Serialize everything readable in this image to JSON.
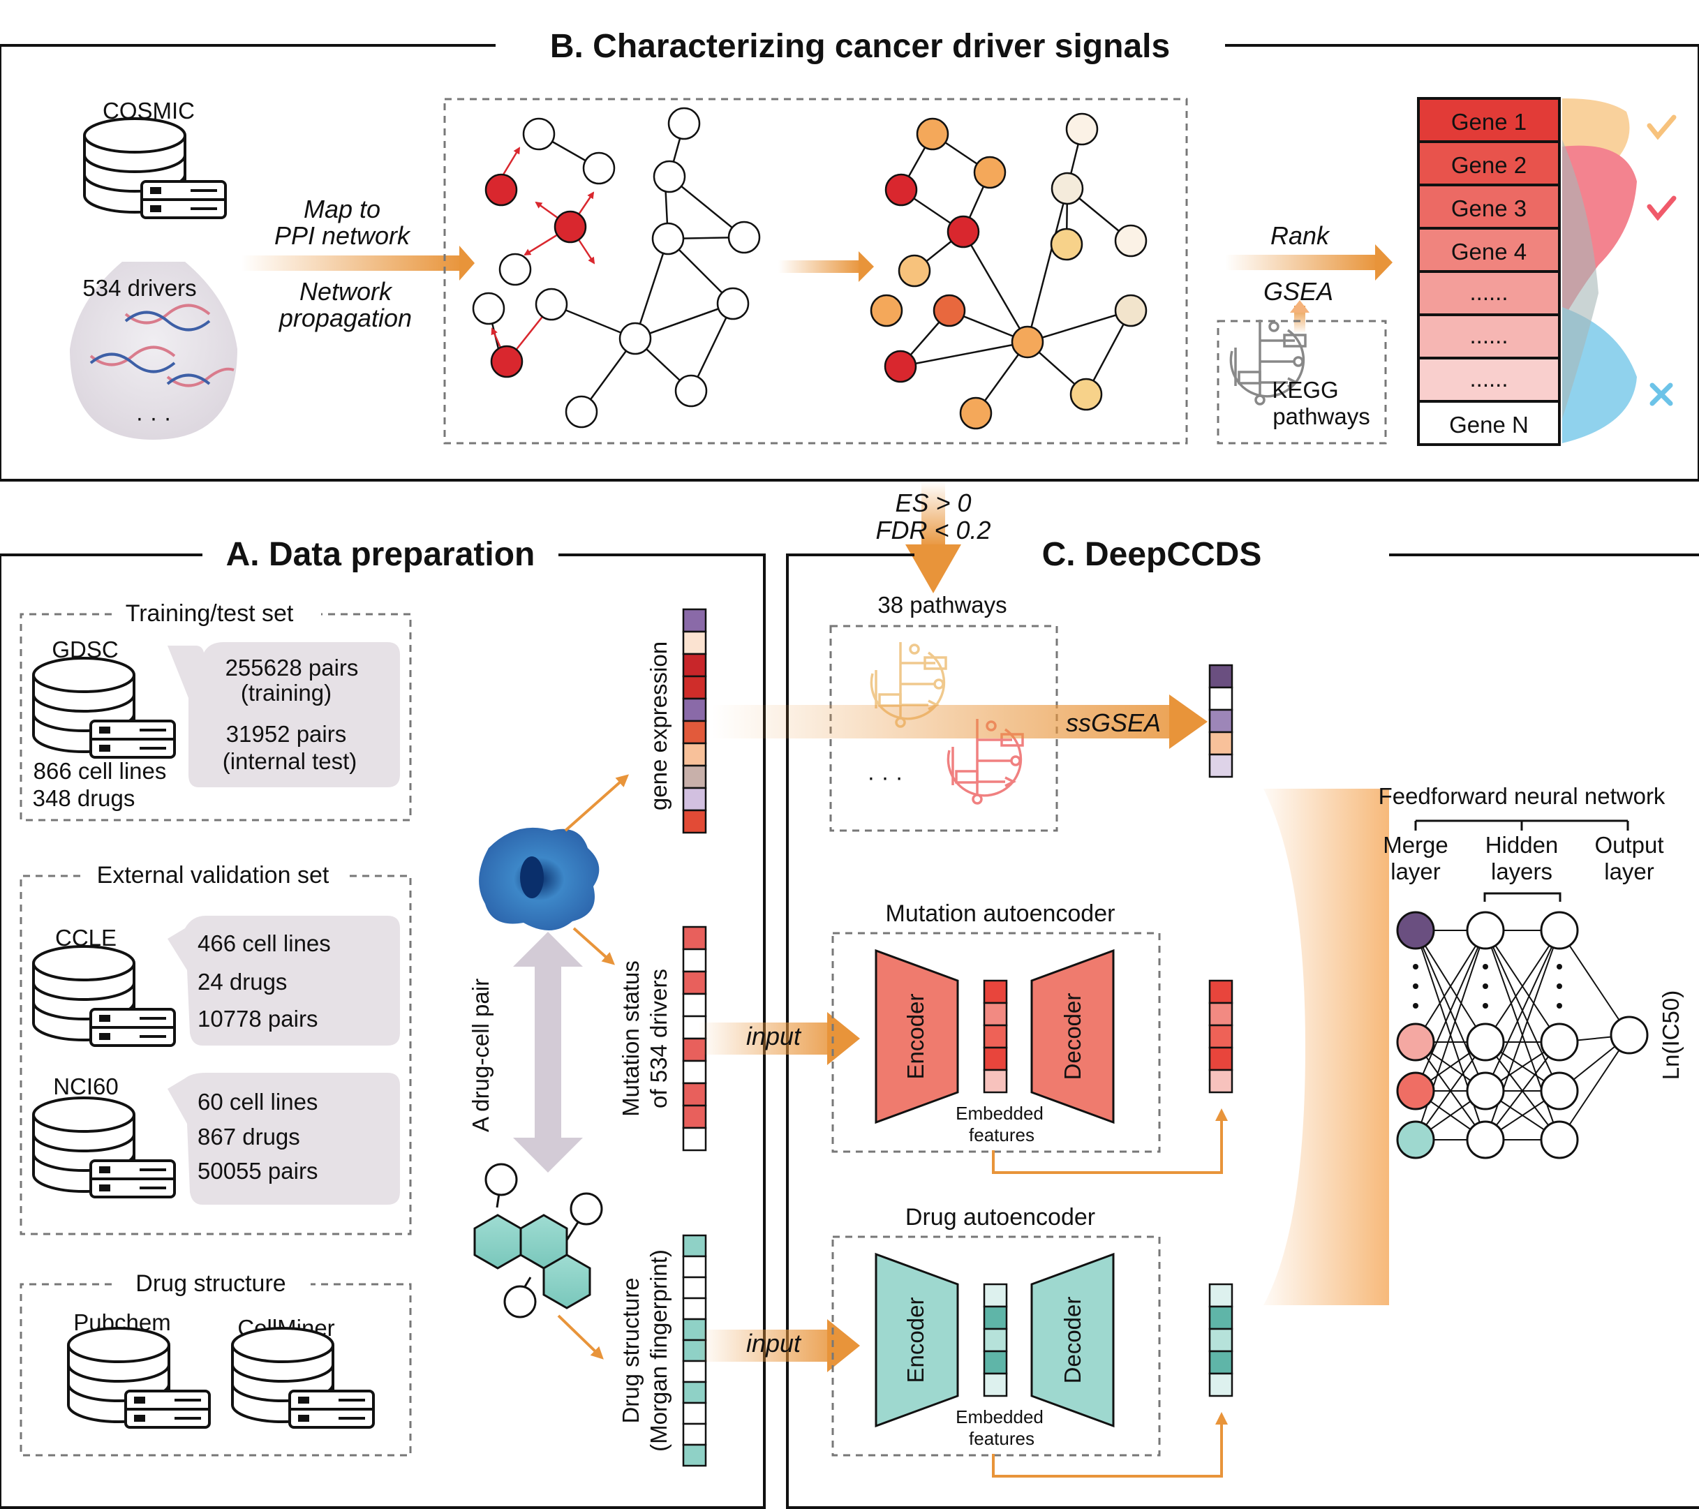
{
  "colors": {
    "red": "#d9272e",
    "orange": "#e8943a",
    "purple": "#7a5a94",
    "teal": "#9ed8cf",
    "salmon": "#ef7b6e",
    "grey_panel": "#e6e1e6"
  },
  "panel_b": {
    "title": "B. Characterizing cancer driver signals",
    "cosmic_label": "COSMIC",
    "drivers_label": "534 drivers",
    "ellipsis": "· · ·",
    "map_line1": "Map to",
    "map_line2": "PPI network",
    "prop_line1": "Network",
    "prop_line2": "propagation",
    "rank": "Rank",
    "gsea": "GSEA",
    "kegg_line1": "KEGG",
    "kegg_line2": "pathways",
    "genes": [
      "Gene 1",
      "Gene 2",
      "Gene 3",
      "Gene 4",
      "......",
      "......",
      "......",
      "Gene N"
    ],
    "check_icon": "check-icon",
    "cross_icon": "cross-icon"
  },
  "connector": {
    "es": "ES > 0",
    "fdr": "FDR < 0.2"
  },
  "panel_a": {
    "title": "A. Data preparation",
    "training_title": "Training/test set",
    "gdsc": "GDSC",
    "gdsc_cells": "866 cell lines",
    "gdsc_drugs": "348 drugs",
    "gdsc_train_pairs": "255628 pairs",
    "gdsc_train_note": "(training)",
    "gdsc_test_pairs": "31952 pairs",
    "gdsc_test_note": "(internal test)",
    "external_title": "External validation set",
    "ccle": "CCLE",
    "ccle_cells": "466 cell lines",
    "ccle_drugs": "24 drugs",
    "ccle_pairs": "10778 pairs",
    "nci60": "NCI60",
    "nci_cells": "60 cell lines",
    "nci_drugs": "867 drugs",
    "nci_pairs": "50055 pairs",
    "drug_structure_title": "Drug structure",
    "pubchem": "Pubchem",
    "cellminer": "CellMiner",
    "drug_cell_pair": "A drug-cell pair",
    "gene_expression": "gene expression",
    "mutation_line1": "Mutation status",
    "mutation_line2": "of 534 drivers",
    "drug_struct_line1": "Drug structure",
    "drug_struct_line2": "(Morgan fingerprint)"
  },
  "panel_c": {
    "title": "C. DeepCCDS",
    "pathways": "38 pathways",
    "ellipsis": "· · ·",
    "ssgsea": "ssGSEA",
    "input": "input",
    "mutation_ae": "Mutation autoencoder",
    "drug_ae": "Drug autoencoder",
    "encoder": "Encoder",
    "decoder": "Decoder",
    "embedded_line1": "Embedded",
    "embedded_line2": "features",
    "ffnn": "Feedforward neural network",
    "merge_line1": "Merge",
    "merge_line2": "layer",
    "hidden_line1": "Hidden",
    "hidden_line2": "layers",
    "output_line1": "Output",
    "output_line2": "layer",
    "ic50": "Ln(IC50)"
  }
}
